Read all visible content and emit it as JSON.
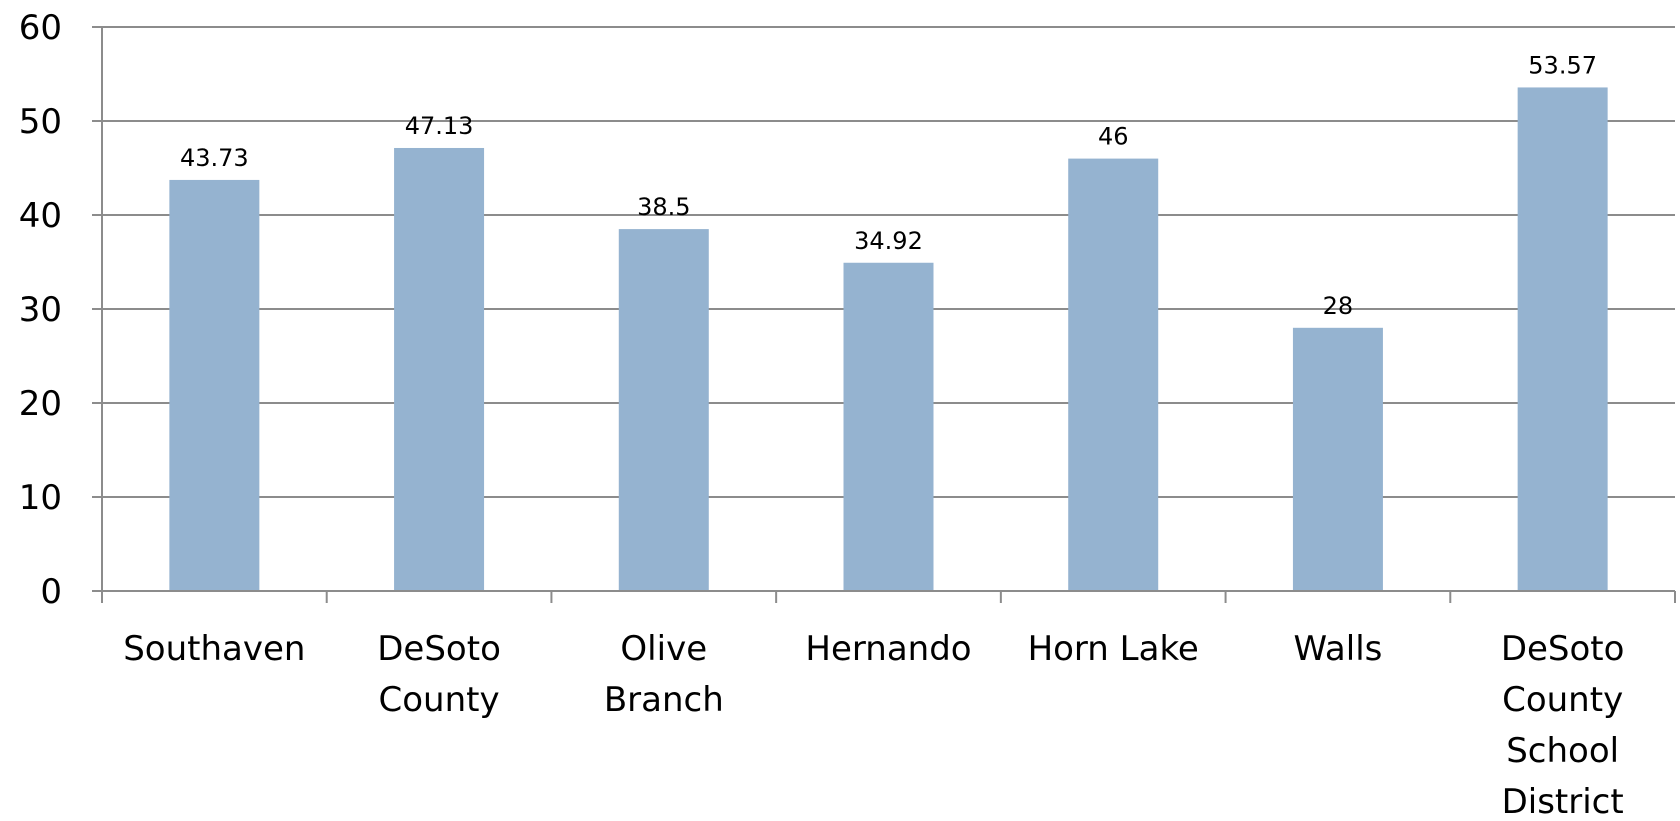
{
  "chart_data": {
    "type": "bar",
    "categories": [
      [
        "Southaven"
      ],
      [
        "DeSoto",
        "County"
      ],
      [
        "Olive",
        "Branch"
      ],
      [
        "Hernando"
      ],
      [
        "Horn Lake"
      ],
      [
        "Walls"
      ],
      [
        "DeSoto",
        "County",
        "School",
        "District"
      ]
    ],
    "values": [
      43.73,
      47.13,
      38.5,
      34.92,
      46,
      28,
      53.57
    ],
    "data_labels": [
      "43.73",
      "47.13",
      "38.5",
      "34.92",
      "46",
      "28",
      "53.57"
    ],
    "yticks": [
      "0",
      "10",
      "20",
      "30",
      "40",
      "50",
      "60"
    ],
    "ylim": [
      0,
      60
    ],
    "grid": true,
    "legend": "none",
    "bar_color": "#95b3d0",
    "grid_color": "#8c8c8c",
    "title": "",
    "xlabel": "",
    "ylabel": ""
  }
}
